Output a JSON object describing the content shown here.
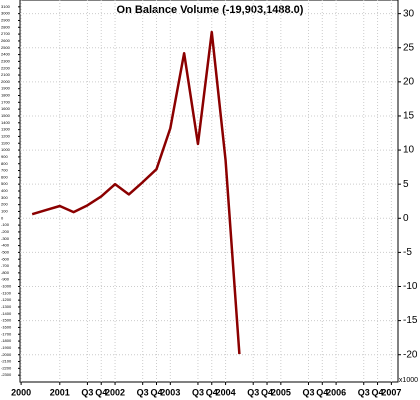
{
  "chart_data": {
    "type": "line",
    "title": "On Balance Volume (-19,903,1488.0)",
    "x": [
      2000.5,
      2000.75,
      2001,
      2001.25,
      2001.5,
      2001.75,
      2002,
      2002.25,
      2002.5,
      2002.75,
      2003,
      2003.25,
      2003.5,
      2003.75,
      2004,
      2004.25
    ],
    "series": [
      {
        "name": "On Balance Volume",
        "color": "#8b0000",
        "values": [
          0.6,
          1.2,
          1.8,
          0.9,
          1.9,
          3.2,
          5.0,
          3.5,
          5.3,
          7.2,
          13.2,
          24.2,
          10.9,
          27.3,
          8.5,
          -19.9
        ]
      }
    ],
    "xlim": [
      2000.28,
      2007.12
    ],
    "xticks": [
      {
        "value": 2000.3,
        "label": "2000"
      },
      {
        "value": 2001,
        "label": "2001"
      },
      {
        "value": 2001.5,
        "label": "Q3"
      },
      {
        "value": 2001.75,
        "label": "Q4"
      },
      {
        "value": 2002,
        "label": "2002"
      },
      {
        "value": 2002.5,
        "label": "Q3"
      },
      {
        "value": 2002.75,
        "label": "Q4"
      },
      {
        "value": 2003,
        "label": "2003"
      },
      {
        "value": 2003.5,
        "label": "Q3"
      },
      {
        "value": 2003.75,
        "label": "Q4"
      },
      {
        "value": 2004,
        "label": "2004"
      },
      {
        "value": 2004.5,
        "label": "Q3"
      },
      {
        "value": 2004.75,
        "label": "Q4"
      },
      {
        "value": 2005,
        "label": "2005"
      },
      {
        "value": 2005.5,
        "label": "Q3"
      },
      {
        "value": 2005.75,
        "label": "Q4"
      },
      {
        "value": 2006,
        "label": "2006"
      },
      {
        "value": 2006.5,
        "label": "Q3"
      },
      {
        "value": 2006.75,
        "label": "Q4"
      },
      {
        "value": 2007,
        "label": "2007"
      }
    ],
    "ylim": [
      -24,
      32
    ],
    "yticks": [
      -20,
      -15,
      -10,
      -5,
      0,
      5,
      10,
      15,
      20,
      25,
      30
    ],
    "y_unit": "x1000",
    "y2lim": [
      -2400,
      3200
    ],
    "y2ticks": [
      -2300,
      -2200,
      -2100,
      -2000,
      -1900,
      -1800,
      -1700,
      -1600,
      -1500,
      -1400,
      -1300,
      -1200,
      -1100,
      -1000,
      -900,
      -800,
      -700,
      -600,
      -500,
      -400,
      -300,
      -200,
      -100,
      0,
      100,
      200,
      300,
      400,
      500,
      600,
      700,
      800,
      900,
      1000,
      1100,
      1200,
      1300,
      1400,
      1500,
      1600,
      1700,
      1800,
      1900,
      2000,
      2100,
      2200,
      2300,
      2400,
      2500,
      2600,
      2700,
      2800,
      2900,
      3000,
      3100
    ],
    "grid": true
  }
}
